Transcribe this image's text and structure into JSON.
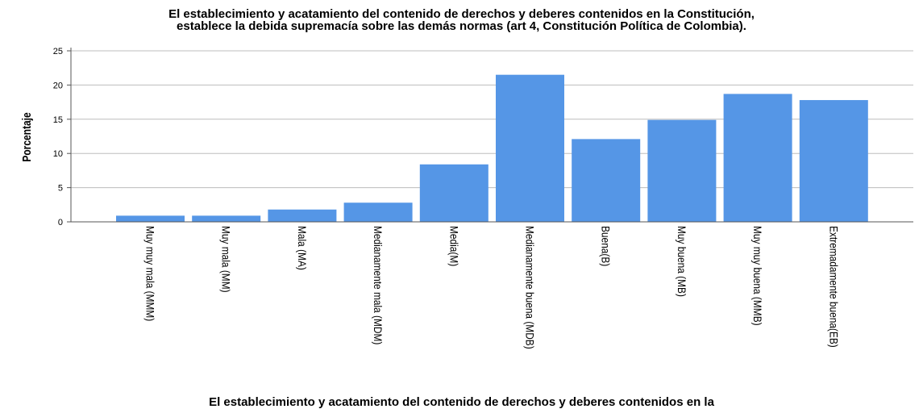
{
  "chart_data": {
    "type": "bar",
    "title_lines": [
      "El establecimiento y acatamiento del contenido de derechos y deberes contenidos en la Constitución,",
      "establece la debida supremacía sobre las demás normas (art 4, Constitución Política de Colombia)."
    ],
    "ylabel": "Porcentaje",
    "xlabel": "El establecimiento y acatamiento del contenido de derechos y deberes contenidos en la",
    "categories": [
      "Muy muy mala (MMM)",
      "Muy mala (MM)",
      "Mala (MA)",
      "Medianamente mala (MDM)",
      "Media(M)",
      "Medianamente buena (MDB)",
      "Buena(B)",
      "Muy buena (MB)",
      "Muy muy buena (MMB)",
      "Extremadamente buena(EB)"
    ],
    "values": [
      0.9,
      0.9,
      1.8,
      2.8,
      8.4,
      21.5,
      12.1,
      14.9,
      18.7,
      17.8
    ],
    "ylim": [
      0,
      25
    ],
    "yticks": [
      0,
      5,
      10,
      15,
      20,
      25
    ],
    "grid": true,
    "bar_color": "#5596e6"
  }
}
